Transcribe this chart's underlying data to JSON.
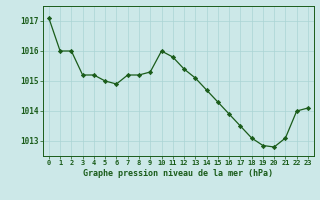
{
  "x": [
    0,
    1,
    2,
    3,
    4,
    5,
    6,
    7,
    8,
    9,
    10,
    11,
    12,
    13,
    14,
    15,
    16,
    17,
    18,
    19,
    20,
    21,
    22,
    23
  ],
  "y": [
    1017.1,
    1016.0,
    1016.0,
    1015.2,
    1015.2,
    1015.0,
    1014.9,
    1015.2,
    1015.2,
    1015.3,
    1016.0,
    1015.8,
    1015.4,
    1015.1,
    1014.7,
    1014.3,
    1013.9,
    1013.5,
    1013.1,
    1012.85,
    1012.8,
    1013.1,
    1014.0,
    1014.1
  ],
  "line_color": "#1a5c1a",
  "marker_color": "#1a5c1a",
  "bg_color": "#cce8e8",
  "grid_color": "#aad4d4",
  "text_color": "#1a5c1a",
  "xlabel": "Graphe pression niveau de la mer (hPa)",
  "ylim_min": 1012.5,
  "ylim_max": 1017.5,
  "yticks": [
    1013,
    1014,
    1015,
    1016,
    1017
  ],
  "xticks": [
    0,
    1,
    2,
    3,
    4,
    5,
    6,
    7,
    8,
    9,
    10,
    11,
    12,
    13,
    14,
    15,
    16,
    17,
    18,
    19,
    20,
    21,
    22,
    23
  ]
}
